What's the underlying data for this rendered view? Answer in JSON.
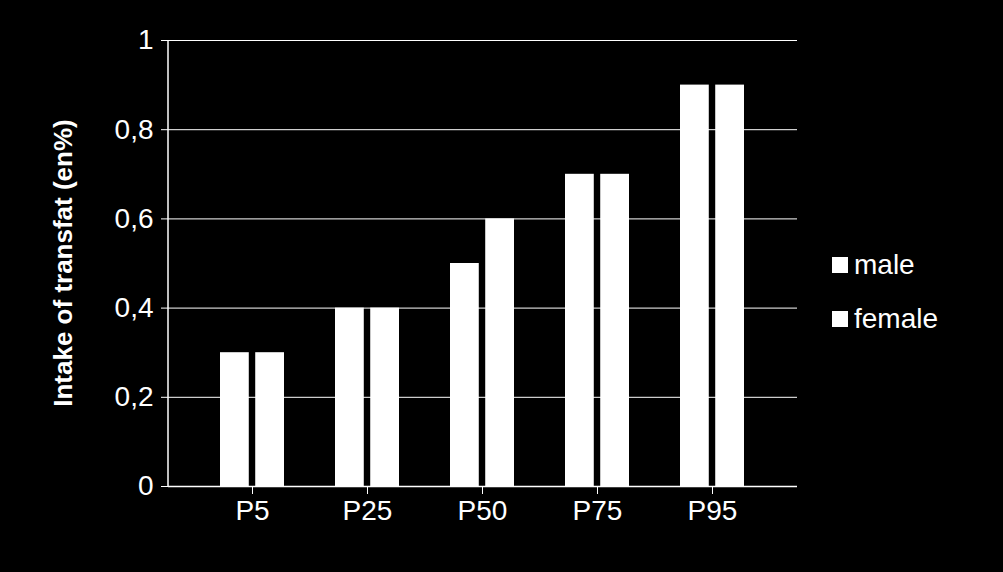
{
  "chart_data": {
    "type": "bar",
    "categories": [
      "P5",
      "P25",
      "P50",
      "P75",
      "P95"
    ],
    "y_label": "Intake of transfat (en%)",
    "series": [
      {
        "name": "male",
        "color": "#ffffff",
        "values": [
          0.3,
          0.4,
          0.5,
          0.7,
          0.9
        ]
      },
      {
        "name": "female",
        "color": "#ffffff",
        "values": [
          0.3,
          0.4,
          0.6,
          0.7,
          0.9
        ]
      }
    ],
    "ylim": [
      0,
      1
    ],
    "yticks": [
      0,
      {
        "value": 0.2,
        "label": "0,2"
      },
      {
        "value": 0.4,
        "label": "0,4"
      },
      {
        "value": 0.6,
        "label": "0,6"
      },
      {
        "value": 0.8,
        "label": "0,8"
      },
      1
    ],
    "grid": true,
    "legend": "right"
  }
}
